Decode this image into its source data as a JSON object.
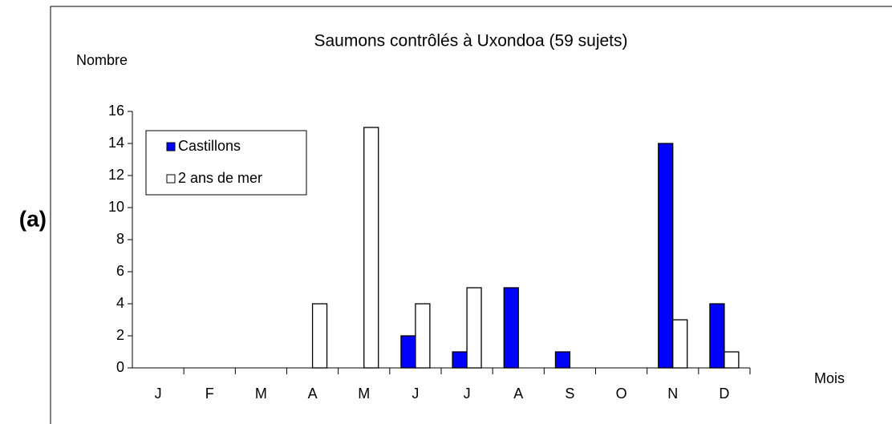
{
  "panel_label": "(a)",
  "chart_data": {
    "type": "bar",
    "title": "Saumons contrôlés à Uxondoa (59 sujets)",
    "y_label": "Nombre",
    "x_label": "Mois",
    "categories": [
      "J",
      "F",
      "M",
      "A",
      "M",
      "J",
      "J",
      "A",
      "S",
      "O",
      "N",
      "D"
    ],
    "series": [
      {
        "name": "Castillons",
        "color": "#0000ff",
        "values": [
          0,
          0,
          0,
          0,
          0,
          2,
          1,
          5,
          1,
          0,
          14,
          4
        ]
      },
      {
        "name": "2 ans de mer",
        "color": "#ffffff",
        "values": [
          0,
          0,
          0,
          4,
          15,
          4,
          5,
          0,
          0,
          0,
          3,
          1
        ]
      }
    ],
    "ylim": [
      0,
      16
    ],
    "yticks": [
      0,
      2,
      4,
      6,
      8,
      10,
      12,
      14,
      16
    ],
    "grid": false,
    "legend": "upper left"
  }
}
